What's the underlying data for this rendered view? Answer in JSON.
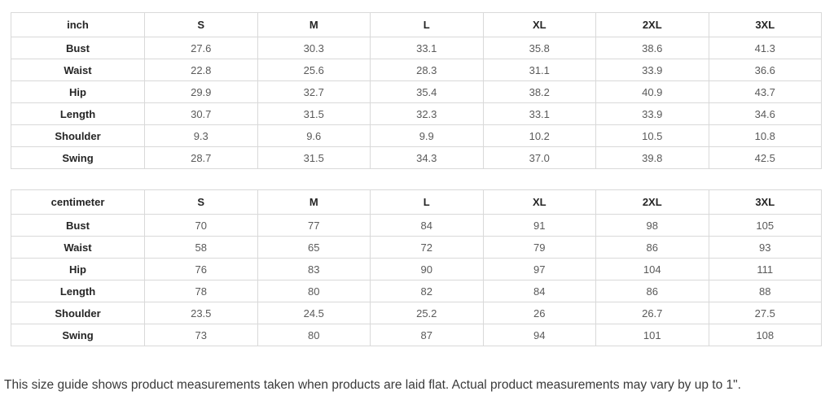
{
  "size_guide": {
    "tables": [
      {
        "unit_label": "inch",
        "columns": [
          "S",
          "M",
          "L",
          "XL",
          "2XL",
          "3XL"
        ],
        "rows": [
          {
            "label": "Bust",
            "values": [
              "27.6",
              "30.3",
              "33.1",
              "35.8",
              "38.6",
              "41.3"
            ]
          },
          {
            "label": "Waist",
            "values": [
              "22.8",
              "25.6",
              "28.3",
              "31.1",
              "33.9",
              "36.6"
            ]
          },
          {
            "label": "Hip",
            "values": [
              "29.9",
              "32.7",
              "35.4",
              "38.2",
              "40.9",
              "43.7"
            ]
          },
          {
            "label": "Length",
            "values": [
              "30.7",
              "31.5",
              "32.3",
              "33.1",
              "33.9",
              "34.6"
            ]
          },
          {
            "label": "Shoulder",
            "values": [
              "9.3",
              "9.6",
              "9.9",
              "10.2",
              "10.5",
              "10.8"
            ]
          },
          {
            "label": "Swing",
            "values": [
              "28.7",
              "31.5",
              "34.3",
              "37.0",
              "39.8",
              "42.5"
            ]
          }
        ]
      },
      {
        "unit_label": "centimeter",
        "columns": [
          "S",
          "M",
          "L",
          "XL",
          "2XL",
          "3XL"
        ],
        "rows": [
          {
            "label": "Bust",
            "values": [
              "70",
              "77",
              "84",
              "91",
              "98",
              "105"
            ]
          },
          {
            "label": "Waist",
            "values": [
              "58",
              "65",
              "72",
              "79",
              "86",
              "93"
            ]
          },
          {
            "label": "Hip",
            "values": [
              "76",
              "83",
              "90",
              "97",
              "104",
              "111"
            ]
          },
          {
            "label": "Length",
            "values": [
              "78",
              "80",
              "82",
              "84",
              "86",
              "88"
            ]
          },
          {
            "label": "Shoulder",
            "values": [
              "23.5",
              "24.5",
              "25.2",
              "26",
              "26.7",
              "27.5"
            ]
          },
          {
            "label": "Swing",
            "values": [
              "73",
              "80",
              "87",
              "94",
              "101",
              "108"
            ]
          }
        ]
      }
    ],
    "footer_note": "This size guide shows product measurements taken when products are laid flat. Actual product measurements may vary by up to 1\"."
  },
  "colors": {
    "background": "#ffffff",
    "table_border": "#d9d9d9",
    "header_text": "#252525",
    "value_text": "#5a5a5a",
    "note_text": "#3a3a3a"
  }
}
